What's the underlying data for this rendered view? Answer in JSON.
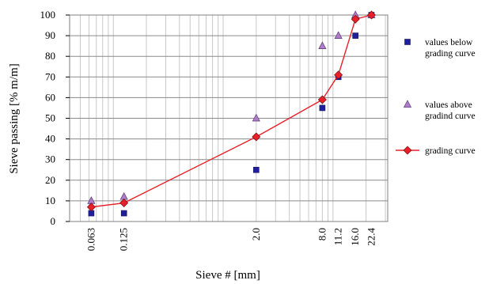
{
  "chart_data": {
    "type": "scatter",
    "title": "",
    "xlabel": "Sieve # [mm]",
    "ylabel": "Sieve passing [% m/m]",
    "x_scale": "log",
    "ylim": [
      0,
      100
    ],
    "y_ticks": [
      "0",
      "10",
      "20",
      "30",
      "40",
      "50",
      "60",
      "70",
      "80",
      "90",
      "100"
    ],
    "x_ticks": [
      {
        "value": 0.063,
        "label": "0.063"
      },
      {
        "value": 0.125,
        "label": "0.125"
      },
      {
        "value": 2.0,
        "label": "2.0"
      },
      {
        "value": 8.0,
        "label": "8.0"
      },
      {
        "value": 11.2,
        "label": "11.2"
      },
      {
        "value": 16.0,
        "label": "16.0"
      },
      {
        "value": 22.4,
        "label": "22.4"
      }
    ],
    "grid": true,
    "legend_position": "right",
    "series": [
      {
        "name": "values below grading curve",
        "legend_lines": [
          "values below",
          "grading curve"
        ],
        "marker": "square",
        "color": "#1f1f9e",
        "points": [
          {
            "x": 0.063,
            "y": 4
          },
          {
            "x": 0.125,
            "y": 4
          },
          {
            "x": 2.0,
            "y": 25
          },
          {
            "x": 8.0,
            "y": 55
          },
          {
            "x": 11.2,
            "y": 70
          },
          {
            "x": 16.0,
            "y": 90
          },
          {
            "x": 22.4,
            "y": 100
          }
        ]
      },
      {
        "name": "values above grading curve",
        "legend_lines": [
          "values above",
          "gradind curve"
        ],
        "marker": "triangle",
        "color": "#b07cc6",
        "points": [
          {
            "x": 0.063,
            "y": 10
          },
          {
            "x": 0.125,
            "y": 12
          },
          {
            "x": 2.0,
            "y": 50
          },
          {
            "x": 8.0,
            "y": 85
          },
          {
            "x": 11.2,
            "y": 90
          },
          {
            "x": 16.0,
            "y": 100
          },
          {
            "x": 22.4,
            "y": 100
          }
        ]
      },
      {
        "name": "grading curve",
        "legend_lines": [
          "grading curve"
        ],
        "marker": "diamond-line",
        "color": "#e8202a",
        "points": [
          {
            "x": 0.063,
            "y": 7
          },
          {
            "x": 0.125,
            "y": 9
          },
          {
            "x": 2.0,
            "y": 41
          },
          {
            "x": 8.0,
            "y": 59
          },
          {
            "x": 11.2,
            "y": 71
          },
          {
            "x": 16.0,
            "y": 98
          },
          {
            "x": 22.4,
            "y": 100
          }
        ]
      }
    ]
  }
}
